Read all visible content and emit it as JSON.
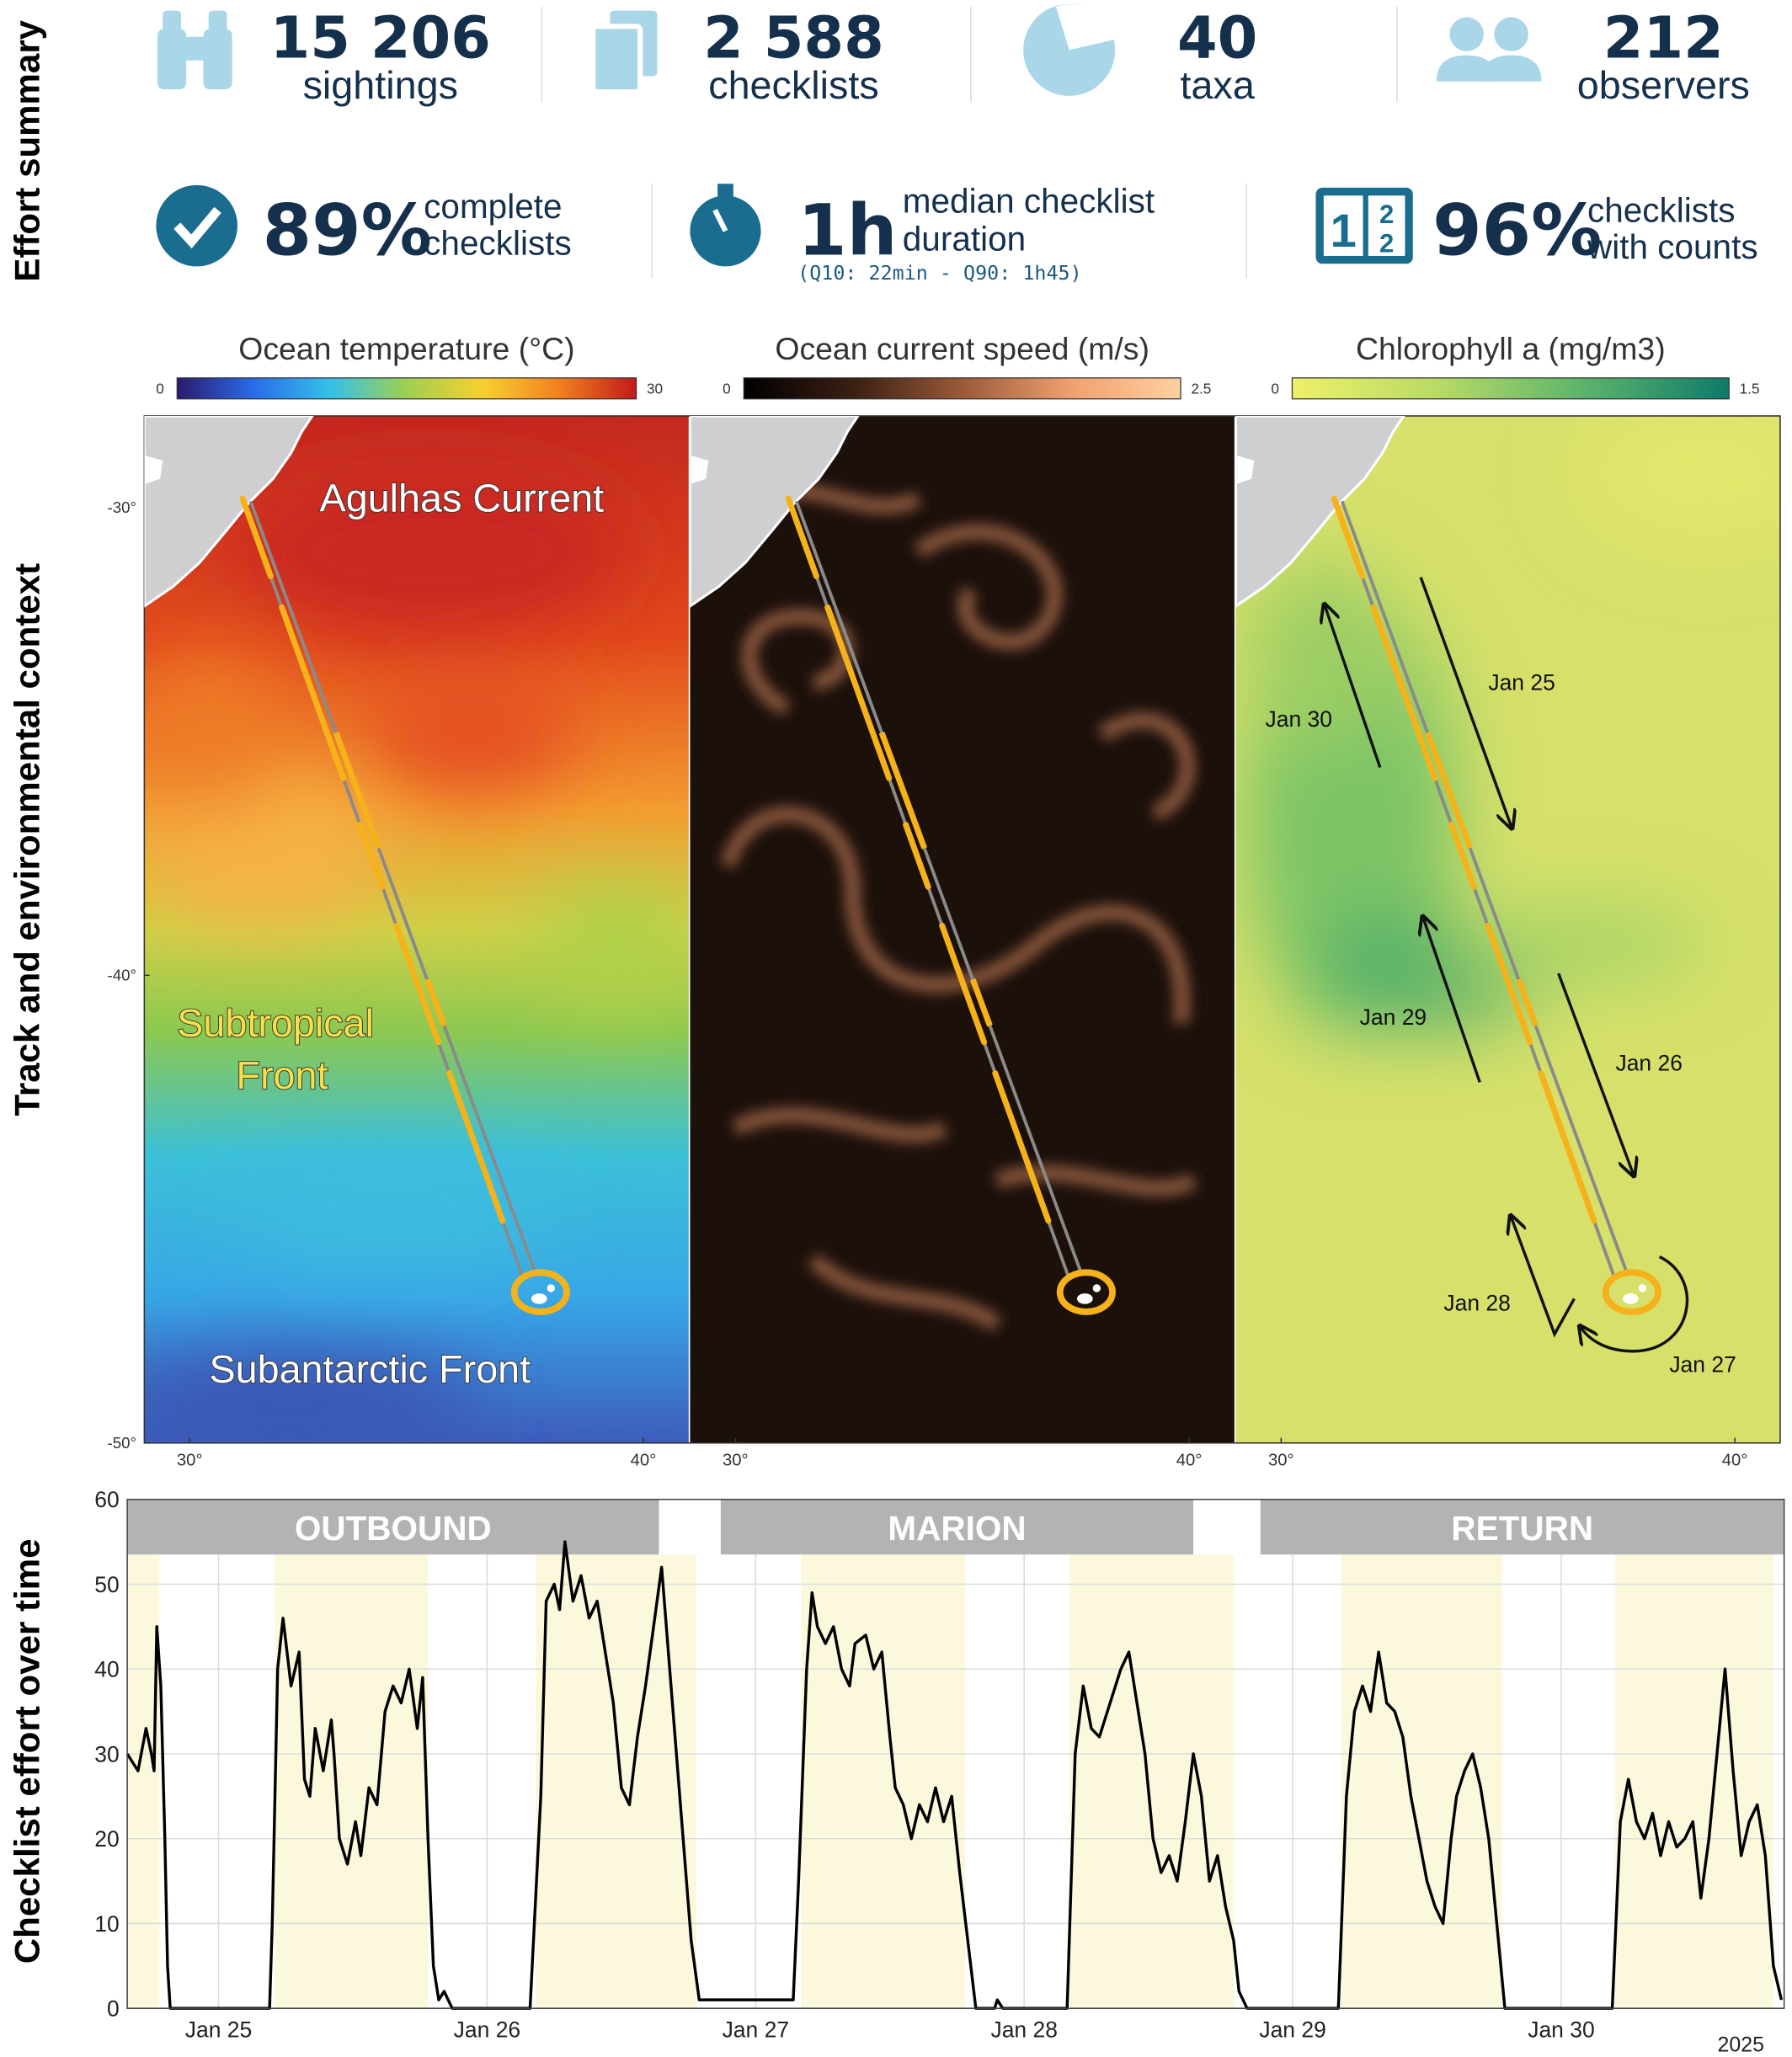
{
  "sections": [
    "Effort summary",
    "Track and environmental context",
    "Checklist effort over time"
  ],
  "summary": {
    "stats": [
      {
        "value": "15 206",
        "label": "sightings"
      },
      {
        "value": "2 588",
        "label": "checklists"
      },
      {
        "value": "40",
        "label": "taxa"
      },
      {
        "value": "212",
        "label": "observers"
      }
    ],
    "metrics": [
      {
        "value": "89%",
        "label_lines": [
          "complete",
          "checklists"
        ]
      },
      {
        "value": "1h",
        "label_lines": [
          "median checklist",
          "duration"
        ],
        "note": "(Q10: 22min - Q90: 1h45)"
      },
      {
        "value": "96%",
        "label_lines": [
          "checklists",
          "with counts"
        ]
      }
    ]
  },
  "maps": [
    {
      "colorbar_title": "Ocean temperature (°C)",
      "colorbar_range": [
        0,
        30
      ],
      "colorbar_colors": [
        "#2b1a6e",
        "#2b6ce8",
        "#35c0e8",
        "#9fd050",
        "#f7d030",
        "#f08020",
        "#c21a1a"
      ],
      "annotations": [
        {
          "lines": [
            "Agulhas Current"
          ]
        },
        {
          "lines": [
            "Subtropical",
            "Front"
          ]
        },
        {
          "lines": [
            "Subantarctic Front"
          ]
        }
      ]
    },
    {
      "colorbar_title": "Ocean current speed (m/s)",
      "colorbar_range": [
        0,
        2.5
      ],
      "colorbar_colors": [
        "#000000",
        "#3a1f14",
        "#9a5a38",
        "#f0a070",
        "#ffd0a0"
      ]
    },
    {
      "colorbar_title": "Chlorophyll a (mg/m3)",
      "colorbar_range": [
        0,
        1.5
      ],
      "colorbar_colors": [
        "#eef06a",
        "#b8da66",
        "#5cb46c",
        "#0e7a6a"
      ],
      "arrow_labels": [
        "Jan 25",
        "Jan 30",
        "Jan 29",
        "Jan 26",
        "Jan 28",
        "Jan 27"
      ]
    }
  ],
  "map_axes": {
    "latlim": [
      -28.04,
      -50
    ],
    "lonlim": [
      29,
      41
    ],
    "lat_ticks": [
      {
        "value": -30,
        "label": "-30°"
      },
      {
        "value": -40,
        "label": "-40°"
      },
      {
        "value": -50,
        "label": "-50°"
      }
    ],
    "lon_ticks": [
      {
        "value": 30,
        "label": "30°"
      },
      {
        "value": 40,
        "label": "40°"
      }
    ]
  },
  "chart_data": {
    "type": "line",
    "color": "#000000",
    "x": [
      24.66,
      24.7,
      24.73,
      24.75,
      24.76,
      24.77,
      24.785,
      24.8,
      24.81,
      24.82,
      25.19,
      25.2,
      25.22,
      25.24,
      25.27,
      25.3,
      25.32,
      25.34,
      25.36,
      25.39,
      25.42,
      25.43,
      25.45,
      25.48,
      25.51,
      25.53,
      25.56,
      25.59,
      25.62,
      25.65,
      25.68,
      25.71,
      25.74,
      25.76,
      25.78,
      25.8,
      25.82,
      25.84,
      25.87,
      26.16,
      26.2,
      26.22,
      26.25,
      26.27,
      26.29,
      26.32,
      26.35,
      26.38,
      26.41,
      26.44,
      26.47,
      26.5,
      26.53,
      26.56,
      26.59,
      26.62,
      26.65,
      26.67,
      26.7,
      26.73,
      26.76,
      26.79,
      27.14,
      27.16,
      27.19,
      27.21,
      27.23,
      27.26,
      27.29,
      27.32,
      27.35,
      27.37,
      27.41,
      27.44,
      27.47,
      27.5,
      27.52,
      27.55,
      27.58,
      27.61,
      27.64,
      27.67,
      27.7,
      27.73,
      27.76,
      27.79,
      27.82,
      27.89,
      27.9,
      27.92,
      28.16,
      28.19,
      28.22,
      28.25,
      28.28,
      28.31,
      28.34,
      28.36,
      28.39,
      28.42,
      28.45,
      28.48,
      28.51,
      28.54,
      28.57,
      28.6,
      28.63,
      28.66,
      28.69,
      28.72,
      28.75,
      28.78,
      28.8,
      28.83,
      29.17,
      29.2,
      29.23,
      29.26,
      29.29,
      29.32,
      29.35,
      29.38,
      29.41,
      29.44,
      29.47,
      29.5,
      29.53,
      29.56,
      29.59,
      29.61,
      29.64,
      29.67,
      29.7,
      29.73,
      29.76,
      29.79,
      30.19,
      30.22,
      30.25,
      30.28,
      30.31,
      30.34,
      30.37,
      30.4,
      30.43,
      30.46,
      30.49,
      30.52,
      30.55,
      30.58,
      30.61,
      30.64,
      30.67,
      30.7,
      30.73,
      30.76,
      30.79,
      30.82
    ],
    "values": [
      30,
      28,
      33,
      30,
      28,
      45,
      38,
      20,
      5,
      0,
      0,
      10,
      40,
      46,
      38,
      42,
      27,
      25,
      33,
      28,
      34,
      30,
      20,
      17,
      22,
      18,
      26,
      24,
      35,
      38,
      36,
      40,
      33,
      39,
      20,
      5,
      1,
      2,
      0,
      0,
      25,
      48,
      50,
      47,
      55,
      48,
      51,
      46,
      48,
      42,
      36,
      26,
      24,
      32,
      38,
      45,
      52,
      44,
      32,
      20,
      8,
      1,
      1,
      15,
      40,
      49,
      45,
      43,
      45,
      40,
      38,
      43,
      44,
      40,
      42,
      32,
      26,
      24,
      20,
      24,
      22,
      26,
      22,
      25,
      16,
      8,
      0,
      0,
      1,
      0,
      0,
      30,
      38,
      33,
      32,
      35,
      38,
      40,
      42,
      36,
      30,
      20,
      16,
      18,
      15,
      22,
      30,
      25,
      15,
      18,
      12,
      8,
      2,
      0,
      0,
      25,
      35,
      38,
      35,
      42,
      36,
      35,
      32,
      25,
      20,
      15,
      12,
      10,
      20,
      25,
      28,
      30,
      26,
      20,
      10,
      0,
      0,
      22,
      27,
      22,
      20,
      23,
      18,
      22,
      19,
      20,
      22,
      13,
      20,
      30,
      40,
      28,
      18,
      22,
      24,
      18,
      5,
      1
    ],
    "xlim": [
      24.66,
      30.83
    ],
    "ylim": [
      0,
      60
    ],
    "yticks": [
      0,
      10,
      20,
      30,
      40,
      50,
      60
    ],
    "xticks": [
      {
        "value": 25,
        "label": "Jan 25"
      },
      {
        "value": 26,
        "label": "Jan 26"
      },
      {
        "value": 27,
        "label": "Jan 27"
      },
      {
        "value": 28,
        "label": "Jan 28"
      },
      {
        "value": 29,
        "label": "Jan 29"
      },
      {
        "value": 30,
        "label": "Jan 30"
      }
    ],
    "year_label": "2025",
    "grid": true,
    "phases": [
      {
        "label": "OUTBOUND",
        "start": 24.66,
        "end": 26.64
      },
      {
        "label": "MARION",
        "start": 26.87,
        "end": 28.63
      },
      {
        "label": "RETURN",
        "start": 28.88,
        "end": 30.83
      }
    ],
    "phase_color": "#b3b3b3",
    "shaded_ranges": [
      [
        24.66,
        24.78
      ],
      [
        25.21,
        25.78
      ],
      [
        26.18,
        26.78
      ],
      [
        27.17,
        27.78
      ],
      [
        28.17,
        28.78
      ],
      [
        29.18,
        29.78
      ],
      [
        30.2,
        30.79
      ]
    ],
    "shade_color": "#fbf8dc"
  }
}
